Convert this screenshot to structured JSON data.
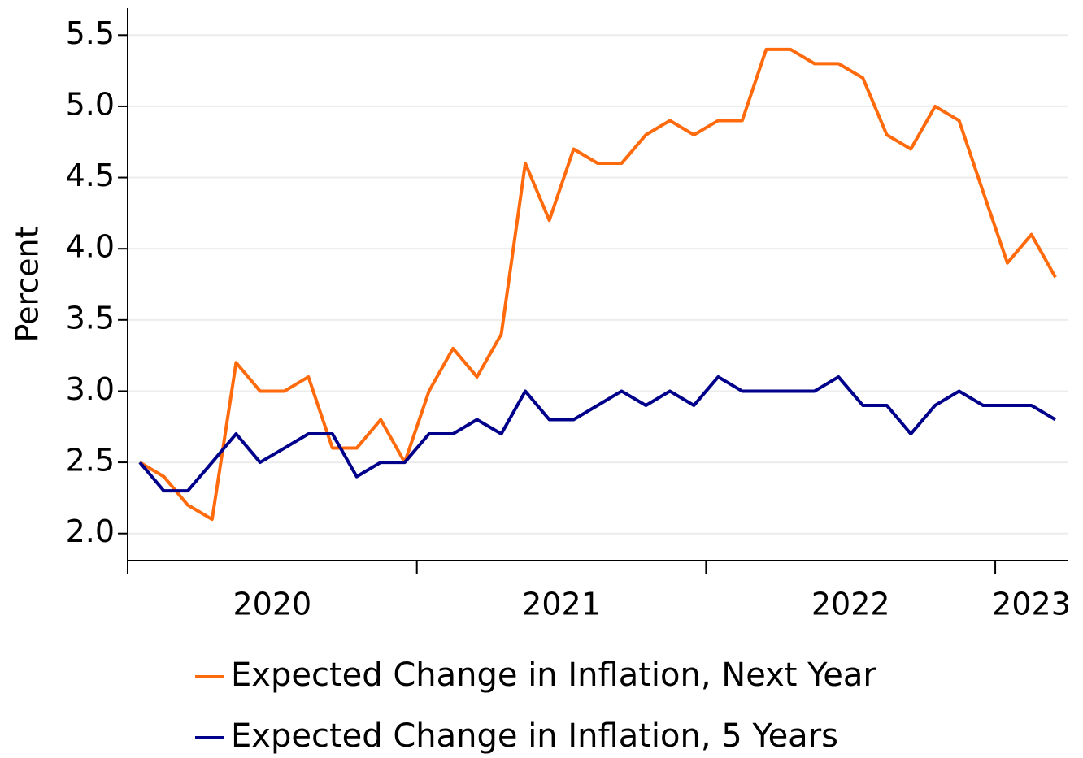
{
  "chart_data": {
    "type": "line",
    "y_label": "Percent",
    "x": [
      2020.042,
      2020.125,
      2020.208,
      2020.292,
      2020.375,
      2020.458,
      2020.542,
      2020.625,
      2020.708,
      2020.792,
      2020.875,
      2020.958,
      2021.042,
      2021.125,
      2021.208,
      2021.292,
      2021.375,
      2021.458,
      2021.542,
      2021.625,
      2021.708,
      2021.792,
      2021.875,
      2021.958,
      2022.042,
      2022.125,
      2022.208,
      2022.292,
      2022.375,
      2022.458,
      2022.542,
      2022.625,
      2022.708,
      2022.792,
      2022.875,
      2022.958,
      2023.042,
      2023.125,
      2023.208
    ],
    "series": [
      {
        "name": "Expected Change in Inflation, Next Year",
        "color": "#ff6a0d",
        "values": [
          2.5,
          2.4,
          2.2,
          2.1,
          3.2,
          3.0,
          3.0,
          3.1,
          2.6,
          2.6,
          2.8,
          2.5,
          3.0,
          3.3,
          3.1,
          3.4,
          4.6,
          4.2,
          4.7,
          4.6,
          4.6,
          4.8,
          4.9,
          4.8,
          4.9,
          4.9,
          5.4,
          5.4,
          5.3,
          5.3,
          5.2,
          4.8,
          4.7,
          5.0,
          4.9,
          4.4,
          3.9,
          4.1,
          3.8
        ]
      },
      {
        "name": "Expected Change in Inflation, 5 Years",
        "color": "#00008b",
        "values": [
          2.5,
          2.3,
          2.3,
          2.5,
          2.7,
          2.5,
          2.6,
          2.7,
          2.7,
          2.4,
          2.5,
          2.5,
          2.7,
          2.7,
          2.8,
          2.7,
          3.0,
          2.8,
          2.8,
          2.9,
          3.0,
          2.9,
          3.0,
          2.9,
          3.1,
          3.0,
          3.0,
          3.0,
          3.0,
          3.1,
          2.9,
          2.9,
          2.7,
          2.9,
          3.0,
          2.9,
          2.9,
          2.9,
          2.8
        ]
      }
    ],
    "xlim": [
      2020,
      2023.25
    ],
    "xticks": [
      2020,
      2021,
      2022,
      2023
    ],
    "ylim": [
      1.81,
      5.69
    ],
    "yticks": [
      {
        "value": 2,
        "label": "2.0"
      },
      {
        "value": 2.5,
        "label": "2.5"
      },
      {
        "value": 3,
        "label": "3.0"
      },
      {
        "value": 3.5,
        "label": "3.5"
      },
      {
        "value": 4,
        "label": "4.0"
      },
      {
        "value": 4.5,
        "label": "4.5"
      },
      {
        "value": 5,
        "label": "5.0"
      },
      {
        "value": 5.5,
        "label": "5.5"
      }
    ],
    "grid": true,
    "legend": "bottom"
  }
}
